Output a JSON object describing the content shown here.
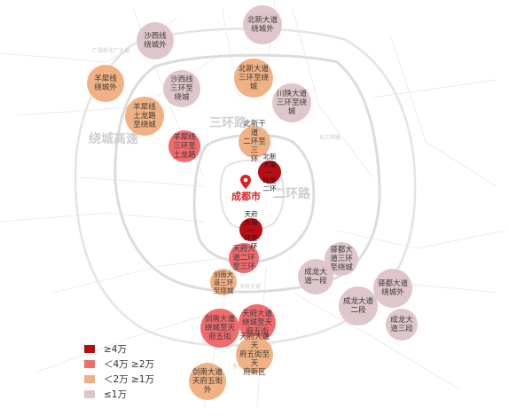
{
  "map": {
    "roads": {
      "second_ring": "二环路",
      "third_ring": "三环路",
      "ring_expressway": "绕城高速"
    },
    "city": {
      "name": "成都市"
    },
    "minor_labels": [
      "广福桥北广大道",
      "东三环路",
      "天府大道",
      "天府新区"
    ]
  },
  "zones": [
    {
      "label": "沙西线\n绕城外",
      "level": 1
    },
    {
      "label": "北新大道\n绕城外",
      "level": 1
    },
    {
      "label": "羊犀线\n绕城外",
      "level": 3
    },
    {
      "label": "沙西线\n三环至\n绕城",
      "level": 1
    },
    {
      "label": "北新大道\n三环至绕\n城",
      "level": 3
    },
    {
      "label": "川陕大道\n三环至绕\n城",
      "level": 1
    },
    {
      "label": "羊犀线\n土龙路\n至绕城",
      "level": 3
    },
    {
      "label": "羊犀线\n三环至\n土龙路",
      "level": 4
    },
    {
      "label": "北新干道\n二环至三\n环",
      "level": 3
    },
    {
      "label": "北新大道一\n环至二环",
      "level": 5
    },
    {
      "label": "天府大道一\n环至二环",
      "level": 5
    },
    {
      "label": "天府大\n道二环\n至三环",
      "level": 4
    },
    {
      "label": "驿都大\n道三环\n至绕城",
      "level": 1
    },
    {
      "label": "成龙大\n道一段",
      "level": 1
    },
    {
      "label": "剑南大\n道三环\n至绕城",
      "level": 3
    },
    {
      "label": "驿都大道\n绕城外",
      "level": 1
    },
    {
      "label": "成龙大道\n二段",
      "level": 1
    },
    {
      "label": "天府大道\n绕城至天\n府五街",
      "level": 4
    },
    {
      "label": "剑南大道\n绕城至天\n府五街",
      "level": 4
    },
    {
      "label": "成龙大\n道三段",
      "level": 1
    },
    {
      "label": "天府大道天\n府五街至天\n府新区",
      "level": 3
    },
    {
      "label": "剑南大道\n天府五街\n外",
      "level": 3
    }
  ],
  "legend": [
    {
      "label": "≥4万",
      "color": "#b20f12"
    },
    {
      "label": "＜4万 ≥2万",
      "color": "#f26b6b"
    },
    {
      "label": "＜2万 ≥1万",
      "color": "#f0b184"
    },
    {
      "label": "≤1万",
      "color": "#dfc4c8"
    }
  ],
  "colors": {
    "level_1": "#dec6ca",
    "level_3": "#f0b184",
    "level_4": "#f06b6e",
    "level_5": "#b70d14",
    "road": "#dcdcdc",
    "city_pin": "#e02020"
  }
}
